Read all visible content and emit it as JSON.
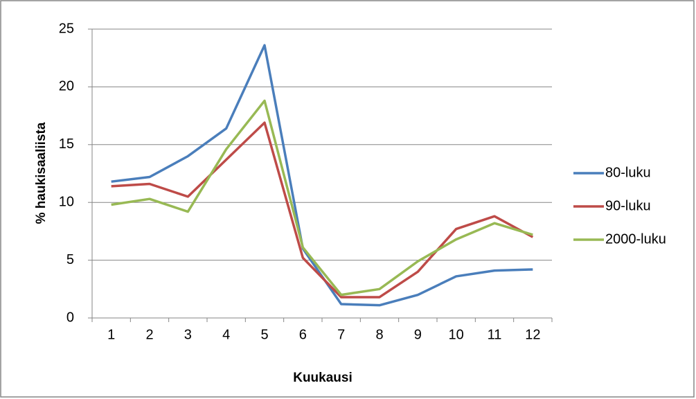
{
  "chart_data": {
    "type": "line",
    "x_label": "Kuukausi",
    "y_label": "% haukisaaliista",
    "categories": [
      "1",
      "2",
      "3",
      "4",
      "5",
      "6",
      "7",
      "8",
      "9",
      "10",
      "11",
      "12"
    ],
    "series": [
      {
        "name": "80-luku",
        "color": "#4a7ebb",
        "values": [
          11.8,
          12.2,
          14.0,
          16.4,
          23.6,
          6.0,
          1.2,
          1.1,
          2.0,
          3.6,
          4.1,
          4.2
        ]
      },
      {
        "name": "90-luku",
        "color": "#be4b48",
        "values": [
          11.4,
          11.6,
          10.5,
          13.7,
          16.9,
          5.2,
          1.8,
          1.8,
          4.0,
          7.7,
          8.8,
          7.0
        ]
      },
      {
        "name": "2000-luku",
        "color": "#98b954",
        "values": [
          9.8,
          10.3,
          9.2,
          14.6,
          18.8,
          6.1,
          2.0,
          2.5,
          4.9,
          6.8,
          8.2,
          7.2
        ]
      }
    ],
    "ylim": [
      0,
      25
    ],
    "yticks": [
      0,
      5,
      10,
      15,
      20,
      25
    ],
    "grid": true,
    "legend": "right"
  }
}
